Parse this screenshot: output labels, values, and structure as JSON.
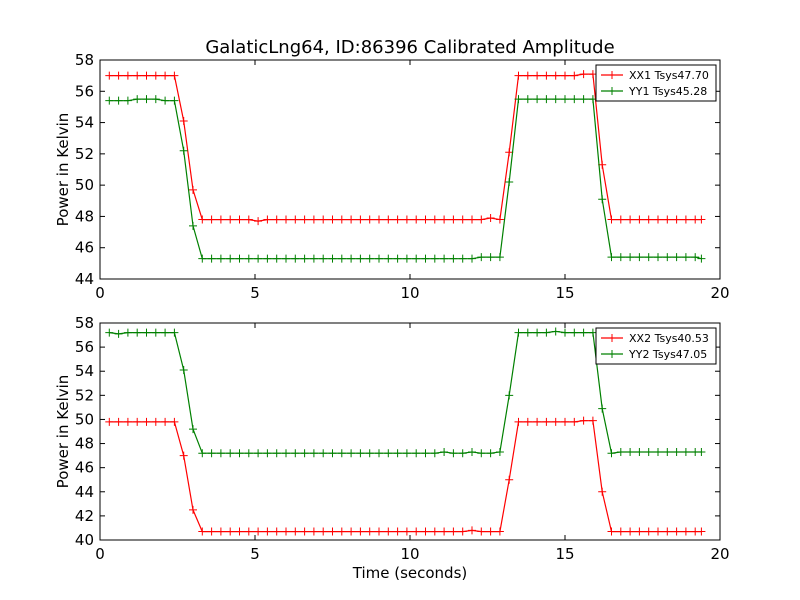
{
  "chart_data": {
    "title": "GalaticLng64, ID:86396 Calibrated Amplitude",
    "xlabel": "Time (seconds)",
    "colors": {
      "red": "#ff0000",
      "green": "#008000"
    },
    "x": [
      0.3,
      0.6,
      0.9,
      1.2,
      1.5,
      1.8,
      2.1,
      2.4,
      2.7,
      3.0,
      3.3,
      3.6,
      3.9,
      4.2,
      4.5,
      4.8,
      5.1,
      5.4,
      5.7,
      6.0,
      6.3,
      6.6,
      6.9,
      7.2,
      7.5,
      7.8,
      8.1,
      8.4,
      8.7,
      9.0,
      9.3,
      9.6,
      9.9,
      10.2,
      10.5,
      10.8,
      11.1,
      11.4,
      11.7,
      12.0,
      12.3,
      12.6,
      12.9,
      13.2,
      13.5,
      13.8,
      14.1,
      14.4,
      14.7,
      15.0,
      15.3,
      15.6,
      15.9,
      16.2,
      16.5,
      16.8,
      17.1,
      17.4,
      17.7,
      18.0,
      18.3,
      18.6,
      18.9,
      19.2,
      19.4
    ],
    "panels": [
      {
        "type": "line",
        "ylabel": "Power in Kelvin",
        "xlim": [
          0,
          20
        ],
        "ylim": [
          44,
          58
        ],
        "xticks": [
          0,
          5,
          10,
          15,
          20
        ],
        "yticks": [
          44,
          46,
          48,
          50,
          52,
          54,
          56,
          58
        ],
        "legend_position": "top-right",
        "series": [
          {
            "name": "XX1 Tsys47.70",
            "color": "#ff0000",
            "values": [
              57.0,
              57.0,
              57.0,
              57.0,
              57.0,
              57.0,
              57.0,
              57.0,
              54.1,
              49.7,
              47.8,
              47.8,
              47.8,
              47.8,
              47.8,
              47.8,
              47.7,
              47.8,
              47.8,
              47.8,
              47.8,
              47.8,
              47.8,
              47.8,
              47.8,
              47.8,
              47.8,
              47.8,
              47.8,
              47.8,
              47.8,
              47.8,
              47.8,
              47.8,
              47.8,
              47.8,
              47.8,
              47.8,
              47.8,
              47.8,
              47.8,
              47.9,
              47.8,
              52.1,
              57.0,
              57.0,
              57.0,
              57.0,
              57.0,
              57.0,
              57.0,
              57.1,
              57.1,
              51.3,
              47.8,
              47.8,
              47.8,
              47.8,
              47.8,
              47.8,
              47.8,
              47.8,
              47.8,
              47.8,
              47.8
            ]
          },
          {
            "name": "YY1 Tsys45.28",
            "color": "#008000",
            "values": [
              55.4,
              55.4,
              55.4,
              55.5,
              55.5,
              55.5,
              55.4,
              55.4,
              52.2,
              47.4,
              45.3,
              45.3,
              45.3,
              45.3,
              45.3,
              45.3,
              45.3,
              45.3,
              45.3,
              45.3,
              45.3,
              45.3,
              45.3,
              45.3,
              45.3,
              45.3,
              45.3,
              45.3,
              45.3,
              45.3,
              45.3,
              45.3,
              45.3,
              45.3,
              45.3,
              45.3,
              45.3,
              45.3,
              45.3,
              45.3,
              45.4,
              45.4,
              45.4,
              50.2,
              55.5,
              55.5,
              55.5,
              55.5,
              55.5,
              55.5,
              55.5,
              55.5,
              55.5,
              49.1,
              45.4,
              45.4,
              45.4,
              45.4,
              45.4,
              45.4,
              45.4,
              45.4,
              45.4,
              45.4,
              45.3
            ]
          }
        ]
      },
      {
        "type": "line",
        "ylabel": "Power in Kelvin",
        "xlim": [
          0,
          20
        ],
        "ylim": [
          40,
          58
        ],
        "xticks": [
          0,
          5,
          10,
          15,
          20
        ],
        "yticks": [
          40,
          42,
          44,
          46,
          48,
          50,
          52,
          54,
          56,
          58
        ],
        "legend_position": "top-right",
        "series": [
          {
            "name": "XX2 Tsys40.53",
            "color": "#ff0000",
            "values": [
              49.8,
              49.8,
              49.8,
              49.8,
              49.8,
              49.8,
              49.8,
              49.8,
              47.0,
              42.5,
              40.7,
              40.7,
              40.7,
              40.7,
              40.7,
              40.7,
              40.7,
              40.7,
              40.7,
              40.7,
              40.7,
              40.7,
              40.7,
              40.7,
              40.7,
              40.7,
              40.7,
              40.7,
              40.7,
              40.7,
              40.7,
              40.7,
              40.7,
              40.7,
              40.7,
              40.7,
              40.7,
              40.7,
              40.7,
              40.8,
              40.7,
              40.7,
              40.7,
              45.0,
              49.8,
              49.8,
              49.8,
              49.8,
              49.8,
              49.8,
              49.8,
              49.9,
              49.9,
              44.0,
              40.7,
              40.7,
              40.7,
              40.7,
              40.7,
              40.7,
              40.7,
              40.7,
              40.7,
              40.7,
              40.7
            ]
          },
          {
            "name": "YY2 Tsys47.05",
            "color": "#008000",
            "values": [
              57.2,
              57.1,
              57.2,
              57.2,
              57.2,
              57.2,
              57.2,
              57.2,
              54.1,
              49.2,
              47.2,
              47.2,
              47.2,
              47.2,
              47.2,
              47.2,
              47.2,
              47.2,
              47.2,
              47.2,
              47.2,
              47.2,
              47.2,
              47.2,
              47.2,
              47.2,
              47.2,
              47.2,
              47.2,
              47.2,
              47.2,
              47.2,
              47.2,
              47.2,
              47.2,
              47.2,
              47.3,
              47.2,
              47.2,
              47.3,
              47.2,
              47.2,
              47.3,
              52.0,
              57.2,
              57.2,
              57.2,
              57.2,
              57.3,
              57.2,
              57.2,
              57.2,
              57.2,
              50.9,
              47.2,
              47.3,
              47.3,
              47.3,
              47.3,
              47.3,
              47.3,
              47.3,
              47.3,
              47.3,
              47.3
            ]
          }
        ]
      }
    ]
  }
}
